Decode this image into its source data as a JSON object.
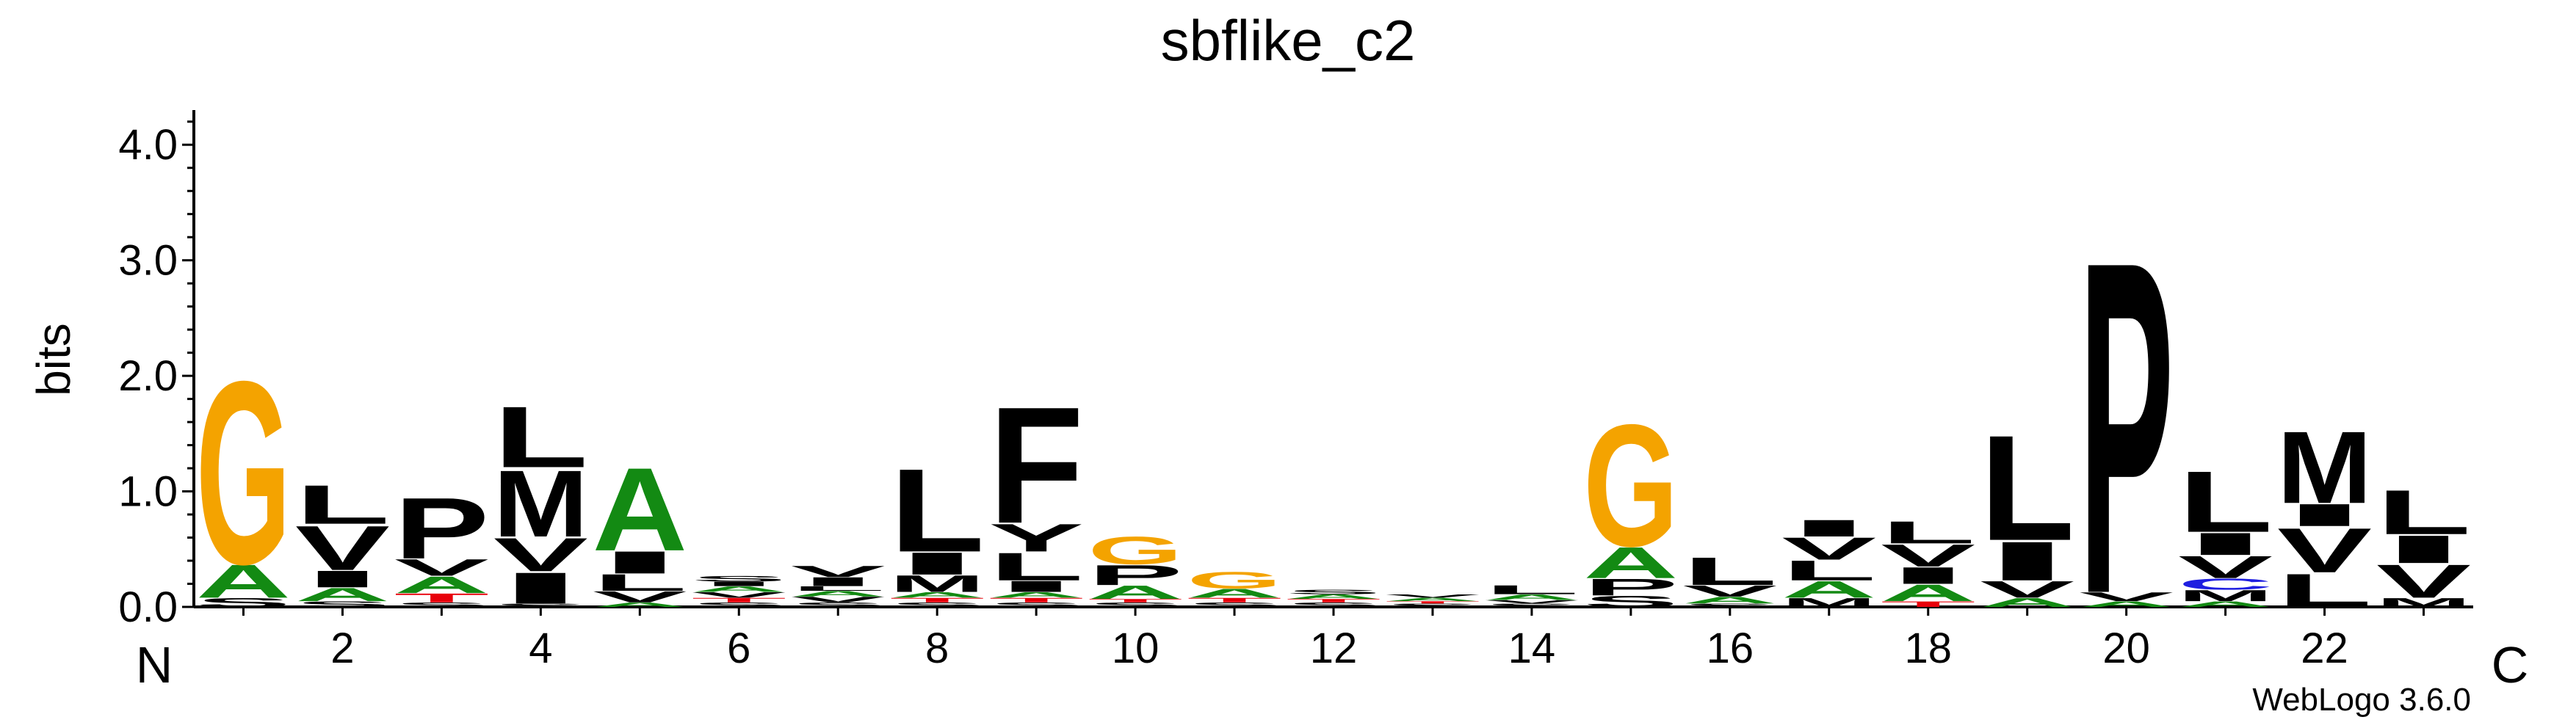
{
  "chart_data": {
    "type": "sequence-logo",
    "title": "sbflike_c2",
    "ylabel": "bits",
    "n_terminal_label": "N",
    "c_terminal_label": "C",
    "credit": "WebLogo 3.6.0",
    "ylim": [
      0,
      4.3
    ],
    "yticks": [
      0.0,
      1.0,
      2.0,
      3.0,
      4.0
    ],
    "ytick_labels": [
      "0.0",
      "1.0",
      "2.0",
      "3.0",
      "4.0"
    ],
    "xticks": [
      2,
      4,
      6,
      8,
      10,
      12,
      14,
      16,
      18,
      20,
      22
    ],
    "xtick_labels": [
      "2",
      "4",
      "6",
      "8",
      "10",
      "12",
      "14",
      "16",
      "18",
      "20",
      "22"
    ],
    "colors": {
      "G": "#f4a300",
      "S": "#000000",
      "T": "#e8000b",
      "C": "#1f1fe0",
      "A": "#138a13",
      "V": "#000000",
      "L": "#000000",
      "I": "#000000",
      "M": "#000000",
      "P": "#000000",
      "F": "#000000",
      "Y": "#000000",
      "W": "#000000",
      "H": "#1f1fe0",
      "K": "#1f1fe0",
      "R": "#1f1fe0",
      "D": "#e8000b",
      "E": "#e8000b",
      "N": "#7b2fbe",
      "Q": "#7b2fbe"
    },
    "positions": [
      {
        "pos": 1,
        "letters": [
          [
            "S",
            0.08
          ],
          [
            "A",
            0.3
          ],
          [
            "G",
            1.65
          ]
        ]
      },
      {
        "pos": 2,
        "letters": [
          [
            "S",
            0.05
          ],
          [
            "A",
            0.12
          ],
          [
            "I",
            0.15
          ],
          [
            "V",
            0.4
          ],
          [
            "L",
            0.35
          ]
        ]
      },
      {
        "pos": 3,
        "letters": [
          [
            "S",
            0.04
          ],
          [
            "T",
            0.08
          ],
          [
            "A",
            0.15
          ],
          [
            "V",
            0.15
          ],
          [
            "P",
            0.55
          ]
        ]
      },
      {
        "pos": 4,
        "letters": [
          [
            "S",
            0.03
          ],
          [
            "I",
            0.28
          ],
          [
            "V",
            0.3
          ],
          [
            "M",
            0.6
          ],
          [
            "L",
            0.55
          ]
        ]
      },
      {
        "pos": 5,
        "letters": [
          [
            "A",
            0.04
          ],
          [
            "V",
            0.1
          ],
          [
            "L",
            0.15
          ],
          [
            "I",
            0.2
          ],
          [
            "A",
            0.75
          ]
        ]
      },
      {
        "pos": 6,
        "letters": [
          [
            "S",
            0.04
          ],
          [
            "T",
            0.04
          ],
          [
            "V",
            0.05
          ],
          [
            "A",
            0.05
          ],
          [
            "I",
            0.04
          ],
          [
            "S",
            0.05
          ]
        ]
      },
      {
        "pos": 7,
        "letters": [
          [
            "S",
            0.04
          ],
          [
            "V",
            0.05
          ],
          [
            "A",
            0.05
          ],
          [
            "L",
            0.04
          ],
          [
            "I",
            0.08
          ],
          [
            "V",
            0.1
          ]
        ]
      },
      {
        "pos": 8,
        "letters": [
          [
            "S",
            0.04
          ],
          [
            "T",
            0.04
          ],
          [
            "A",
            0.05
          ],
          [
            "M",
            0.15
          ],
          [
            "I",
            0.2
          ],
          [
            "L",
            0.75
          ]
        ]
      },
      {
        "pos": 9,
        "letters": [
          [
            "S",
            0.04
          ],
          [
            "T",
            0.04
          ],
          [
            "A",
            0.05
          ],
          [
            "I",
            0.1
          ],
          [
            "L",
            0.25
          ],
          [
            "Y",
            0.25
          ],
          [
            "F",
            1.05
          ]
        ]
      },
      {
        "pos": 10,
        "letters": [
          [
            "S",
            0.04
          ],
          [
            "T",
            0.03
          ],
          [
            "A",
            0.12
          ],
          [
            "P",
            0.18
          ],
          [
            "G",
            0.25
          ]
        ]
      },
      {
        "pos": 11,
        "letters": [
          [
            "S",
            0.04
          ],
          [
            "T",
            0.04
          ],
          [
            "A",
            0.08
          ],
          [
            "G",
            0.15
          ]
        ]
      },
      {
        "pos": 12,
        "letters": [
          [
            "S",
            0.04
          ],
          [
            "T",
            0.03
          ],
          [
            "A",
            0.04
          ],
          [
            "S",
            0.04
          ]
        ]
      },
      {
        "pos": 13,
        "letters": [
          [
            "S",
            0.03
          ],
          [
            "T",
            0.02
          ],
          [
            "A",
            0.03
          ],
          [
            "V",
            0.03
          ]
        ]
      },
      {
        "pos": 14,
        "letters": [
          [
            "S",
            0.03
          ],
          [
            "V",
            0.03
          ],
          [
            "A",
            0.05
          ],
          [
            "L",
            0.08
          ]
        ]
      },
      {
        "pos": 15,
        "letters": [
          [
            "S",
            0.1
          ],
          [
            "P",
            0.15
          ],
          [
            "A",
            0.28
          ],
          [
            "G",
            1.1
          ]
        ]
      },
      {
        "pos": 16,
        "letters": [
          [
            "S",
            0.03
          ],
          [
            "A",
            0.06
          ],
          [
            "V",
            0.1
          ],
          [
            "L",
            0.25
          ]
        ]
      },
      {
        "pos": 17,
        "letters": [
          [
            "M",
            0.08
          ],
          [
            "A",
            0.15
          ],
          [
            "L",
            0.18
          ],
          [
            "V",
            0.2
          ],
          [
            "I",
            0.15
          ]
        ]
      },
      {
        "pos": 18,
        "letters": [
          [
            "T",
            0.05
          ],
          [
            "A",
            0.15
          ],
          [
            "I",
            0.15
          ],
          [
            "V",
            0.2
          ],
          [
            "L",
            0.2
          ]
        ]
      },
      {
        "pos": 19,
        "letters": [
          [
            "A",
            0.08
          ],
          [
            "V",
            0.15
          ],
          [
            "I",
            0.35
          ],
          [
            "L",
            0.95
          ]
        ]
      },
      {
        "pos": 20,
        "letters": [
          [
            "A",
            0.05
          ],
          [
            "V",
            0.08
          ],
          [
            "P",
            3.0
          ]
        ]
      },
      {
        "pos": 21,
        "letters": [
          [
            "A",
            0.05
          ],
          [
            "M",
            0.1
          ],
          [
            "C",
            0.1
          ],
          [
            "V",
            0.2
          ],
          [
            "I",
            0.2
          ],
          [
            "L",
            0.55
          ]
        ]
      },
      {
        "pos": 22,
        "letters": [
          [
            "L",
            0.3
          ],
          [
            "V",
            0.4
          ],
          [
            "I",
            0.2
          ],
          [
            "M",
            0.65
          ]
        ]
      },
      {
        "pos": 23,
        "letters": [
          [
            "M",
            0.08
          ],
          [
            "V",
            0.3
          ],
          [
            "I",
            0.25
          ],
          [
            "L",
            0.4
          ]
        ]
      }
    ]
  }
}
